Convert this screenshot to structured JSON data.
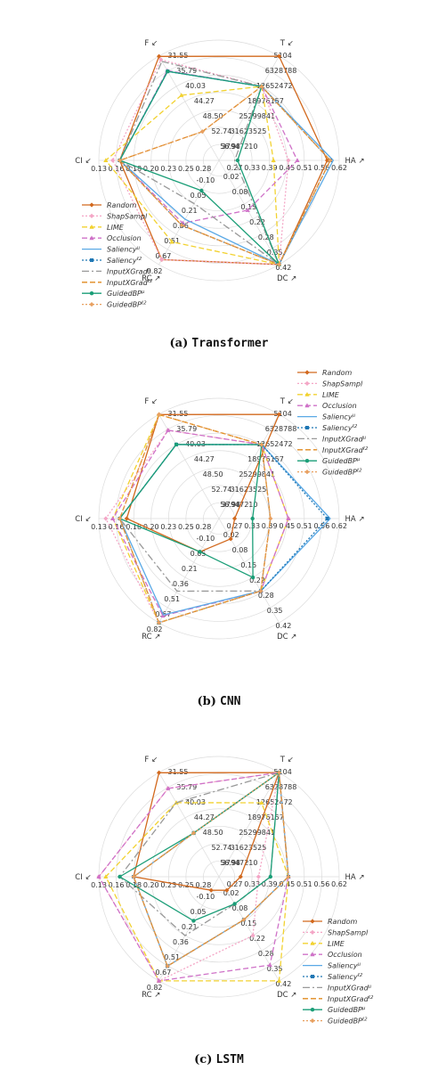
{
  "series_styles": [
    {
      "name": "Random",
      "color": "#d2691e",
      "dash": "",
      "marker": "diamond"
    },
    {
      "name": "ShapSampl",
      "color": "#f4a6c6",
      "dash": "2,2",
      "marker": "diamond"
    },
    {
      "name": "LIME",
      "color": "#f2d230",
      "dash": "6,3",
      "marker": "triangle"
    },
    {
      "name": "Occlusion",
      "color": "#cf72c8",
      "dash": "6,3",
      "marker": "triangle"
    },
    {
      "name": "Saliency^μ",
      "color": "#5aa9e6",
      "dash": "",
      "marker": "none"
    },
    {
      "name": "Saliency^ℓ2",
      "color": "#1f77b4",
      "dash": "2,2",
      "marker": "square"
    },
    {
      "name": "InputXGrad^μ",
      "color": "#999999",
      "dash": "8,3,2,3",
      "marker": "none"
    },
    {
      "name": "InputXGrad^ℓ2",
      "color": "#e08a1e",
      "dash": "6,3",
      "marker": "none"
    },
    {
      "name": "GuidedBP^μ",
      "color": "#1a9e77",
      "dash": "",
      "marker": "circle"
    },
    {
      "name": "GuidedBP^ℓ2",
      "color": "#e8a060",
      "dash": "2,2",
      "marker": "diamond"
    }
  ],
  "axes": [
    {
      "name": "F",
      "arrow": "↙",
      "ticks": [
        "31.55",
        "35.79",
        "40.03",
        "44.27",
        "48.50",
        "52.74",
        "56.98"
      ]
    },
    {
      "name": "T",
      "arrow": "↙",
      "ticks": [
        "5104",
        "6328788",
        "12652472",
        "18976157",
        "25299841",
        "31623525",
        "37947210"
      ]
    },
    {
      "name": "HA",
      "arrow": "↗",
      "ticks": [
        "0.62",
        "0.56",
        "0.51",
        "0.45",
        "0.39",
        "0.33",
        "0.27"
      ]
    },
    {
      "name": "DC",
      "arrow": "↗",
      "ticks": [
        "0.42",
        "0.35",
        "0.28",
        "0.22",
        "0.15",
        "0.08",
        "0.02"
      ]
    },
    {
      "name": "RC",
      "arrow": "↗",
      "ticks": [
        "0.82",
        "0.67",
        "0.51",
        "0.36",
        "0.21",
        "0.05",
        "-0.10"
      ]
    },
    {
      "name": "CI",
      "arrow": "↙",
      "ticks": [
        "0.13",
        "0.16",
        "0.18",
        "0.20",
        "0.23",
        "0.25",
        "0.28"
      ]
    }
  ],
  "chart_data": [
    {
      "type": "radar",
      "caption_label": "(a)",
      "caption_name": "Transformer",
      "legend_order": [
        0,
        1,
        2,
        3,
        4,
        5,
        6,
        7,
        8,
        9
      ],
      "legend_position": "bottom-left",
      "axes": [
        "F",
        "T",
        "HA",
        "DC",
        "RC",
        "CI"
      ],
      "series": [
        {
          "name": "Random",
          "values": [
            31.6,
            5104,
            0.58,
            0.42,
            0.77,
            0.16
          ]
        },
        {
          "name": "ShapSampl",
          "values": [
            32.5,
            12652472,
            0.45,
            0.42,
            0.77,
            0.15
          ]
        },
        {
          "name": "LIME",
          "values": [
            42.5,
            12652472,
            0.4,
            0.42,
            0.59,
            0.14
          ]
        },
        {
          "name": "Occlusion",
          "values": [
            35.6,
            12652472,
            0.48,
            0.18,
            0.4,
            0.16
          ]
        },
        {
          "name": "Saliency^μ",
          "values": [
            35.8,
            12652472,
            0.6,
            0.42,
            0.36,
            0.16
          ]
        },
        {
          "name": "Saliency^ℓ2",
          "values": [
            35.8,
            12652472,
            0.59,
            0.42,
            0.42,
            0.16
          ]
        },
        {
          "name": "InputXGrad^μ",
          "values": [
            33.0,
            12652472,
            0.27,
            0.42,
            0.2,
            0.16
          ]
        },
        {
          "name": "InputXGrad^ℓ2",
          "values": [
            52.7,
            12652472,
            0.59,
            0.42,
            0.42,
            0.16
          ]
        },
        {
          "name": "GuidedBP^μ",
          "values": [
            35.8,
            12652472,
            0.28,
            0.42,
            0.07,
            0.16
          ]
        },
        {
          "name": "GuidedBP^ℓ2",
          "values": [
            52.7,
            12652472,
            0.59,
            0.42,
            0.42,
            0.16
          ]
        }
      ]
    },
    {
      "type": "radar",
      "caption_label": "(b)",
      "caption_name": "CNN",
      "legend_order": [
        0,
        1,
        2,
        3,
        4,
        5,
        6,
        7,
        8,
        9
      ],
      "legend_position": "top-right",
      "axes": [
        "F",
        "T",
        "HA",
        "DC",
        "RC",
        "CI"
      ],
      "series": [
        {
          "name": "Random",
          "values": [
            31.6,
            5104,
            0.27,
            0.05,
            0.1,
            0.17
          ]
        },
        {
          "name": "ShapSampl",
          "values": [
            36.0,
            12652472,
            0.45,
            0.28,
            0.82,
            0.14
          ]
        },
        {
          "name": "LIME",
          "values": [
            31.6,
            12652472,
            0.45,
            0.28,
            0.82,
            0.15
          ]
        },
        {
          "name": "Occlusion",
          "values": [
            36.0,
            12652472,
            0.45,
            0.28,
            0.75,
            0.15
          ]
        },
        {
          "name": "Saliency^μ",
          "values": [
            40.0,
            12652472,
            0.59,
            0.28,
            0.74,
            0.16
          ]
        },
        {
          "name": "Saliency^ℓ2",
          "values": [
            40.0,
            12652472,
            0.58,
            0.28,
            0.82,
            0.16
          ]
        },
        {
          "name": "InputXGrad^μ",
          "values": [
            40.0,
            12652472,
            0.39,
            0.28,
            0.5,
            0.16
          ]
        },
        {
          "name": "InputXGrad^ℓ2",
          "values": [
            31.6,
            12652472,
            0.39,
            0.28,
            0.82,
            0.16
          ]
        },
        {
          "name": "GuidedBP^μ",
          "values": [
            40.0,
            12652472,
            0.33,
            0.22,
            0.1,
            0.16
          ]
        },
        {
          "name": "GuidedBP^ℓ2",
          "values": [
            31.6,
            12652472,
            0.39,
            0.28,
            0.82,
            0.16
          ]
        }
      ]
    },
    {
      "type": "radar",
      "caption_label": "(c)",
      "caption_name": "LSTM",
      "legend_order": [
        0,
        1,
        2,
        3,
        4,
        5,
        6,
        7,
        8,
        9
      ],
      "legend_position": "bottom-right",
      "axes": [
        "F",
        "T",
        "HA",
        "DC",
        "RC",
        "CI"
      ],
      "series": [
        {
          "name": "Random",
          "values": [
            31.6,
            5104,
            0.29,
            0.02,
            -0.1,
            0.18
          ]
        },
        {
          "name": "ShapSampl",
          "values": [
            36.0,
            5104,
            0.35,
            0.22,
            0.82,
            0.13
          ]
        },
        {
          "name": "LIME",
          "values": [
            40.0,
            12652472,
            0.45,
            0.42,
            0.82,
            0.14
          ]
        },
        {
          "name": "Occlusion",
          "values": [
            36.0,
            5104,
            0.45,
            0.35,
            0.82,
            0.13
          ]
        },
        {
          "name": "Saliency^μ",
          "values": [
            48.5,
            5104,
            0.45,
            0.15,
            0.67,
            0.18
          ]
        },
        {
          "name": "Saliency^ℓ2",
          "values": [
            48.5,
            5104,
            0.45,
            0.15,
            0.67,
            0.18
          ]
        },
        {
          "name": "InputXGrad^μ",
          "values": [
            40.0,
            5104,
            0.39,
            0.08,
            0.36,
            0.16
          ]
        },
        {
          "name": "InputXGrad^ℓ2",
          "values": [
            48.5,
            5104,
            0.45,
            0.15,
            0.67,
            0.18
          ]
        },
        {
          "name": "GuidedBP^μ",
          "values": [
            48.5,
            5104,
            0.39,
            0.08,
            0.21,
            0.16
          ]
        },
        {
          "name": "GuidedBP^ℓ2",
          "values": [
            48.5,
            5104,
            0.45,
            0.15,
            0.67,
            0.18
          ]
        }
      ]
    }
  ]
}
